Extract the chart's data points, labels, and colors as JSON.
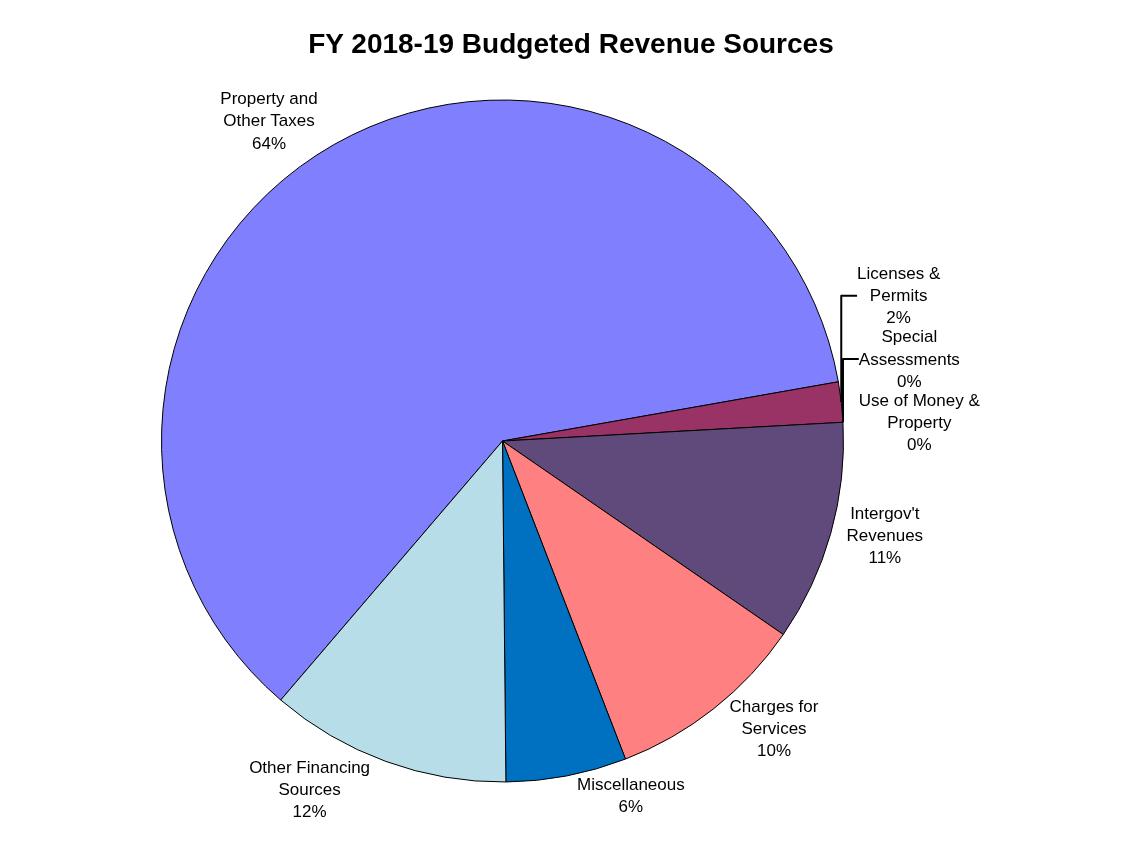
{
  "chart_data": {
    "type": "pie",
    "title": "FY 2018-19 Budgeted Revenue Sources",
    "categories": [
      "Property and Other Taxes",
      "Licenses & Permits",
      "Use of Money & Property",
      "Special Assessments",
      "Intergov't Revenues",
      "Charges for Services",
      "Miscellaneous",
      "Other Financing Sources"
    ],
    "values": [
      64,
      2,
      0,
      0,
      11,
      10,
      6,
      12
    ],
    "value_labels": [
      "64%",
      "2%",
      "0%",
      "0%",
      "11%",
      "10%",
      "6%",
      "12%"
    ],
    "colors": [
      "#8080ff",
      "#993366",
      "#ffffcc",
      "#ccffcc",
      "#604a7b",
      "#ff8080",
      "#0070c0",
      "#b7dee8"
    ],
    "legend": false
  }
}
